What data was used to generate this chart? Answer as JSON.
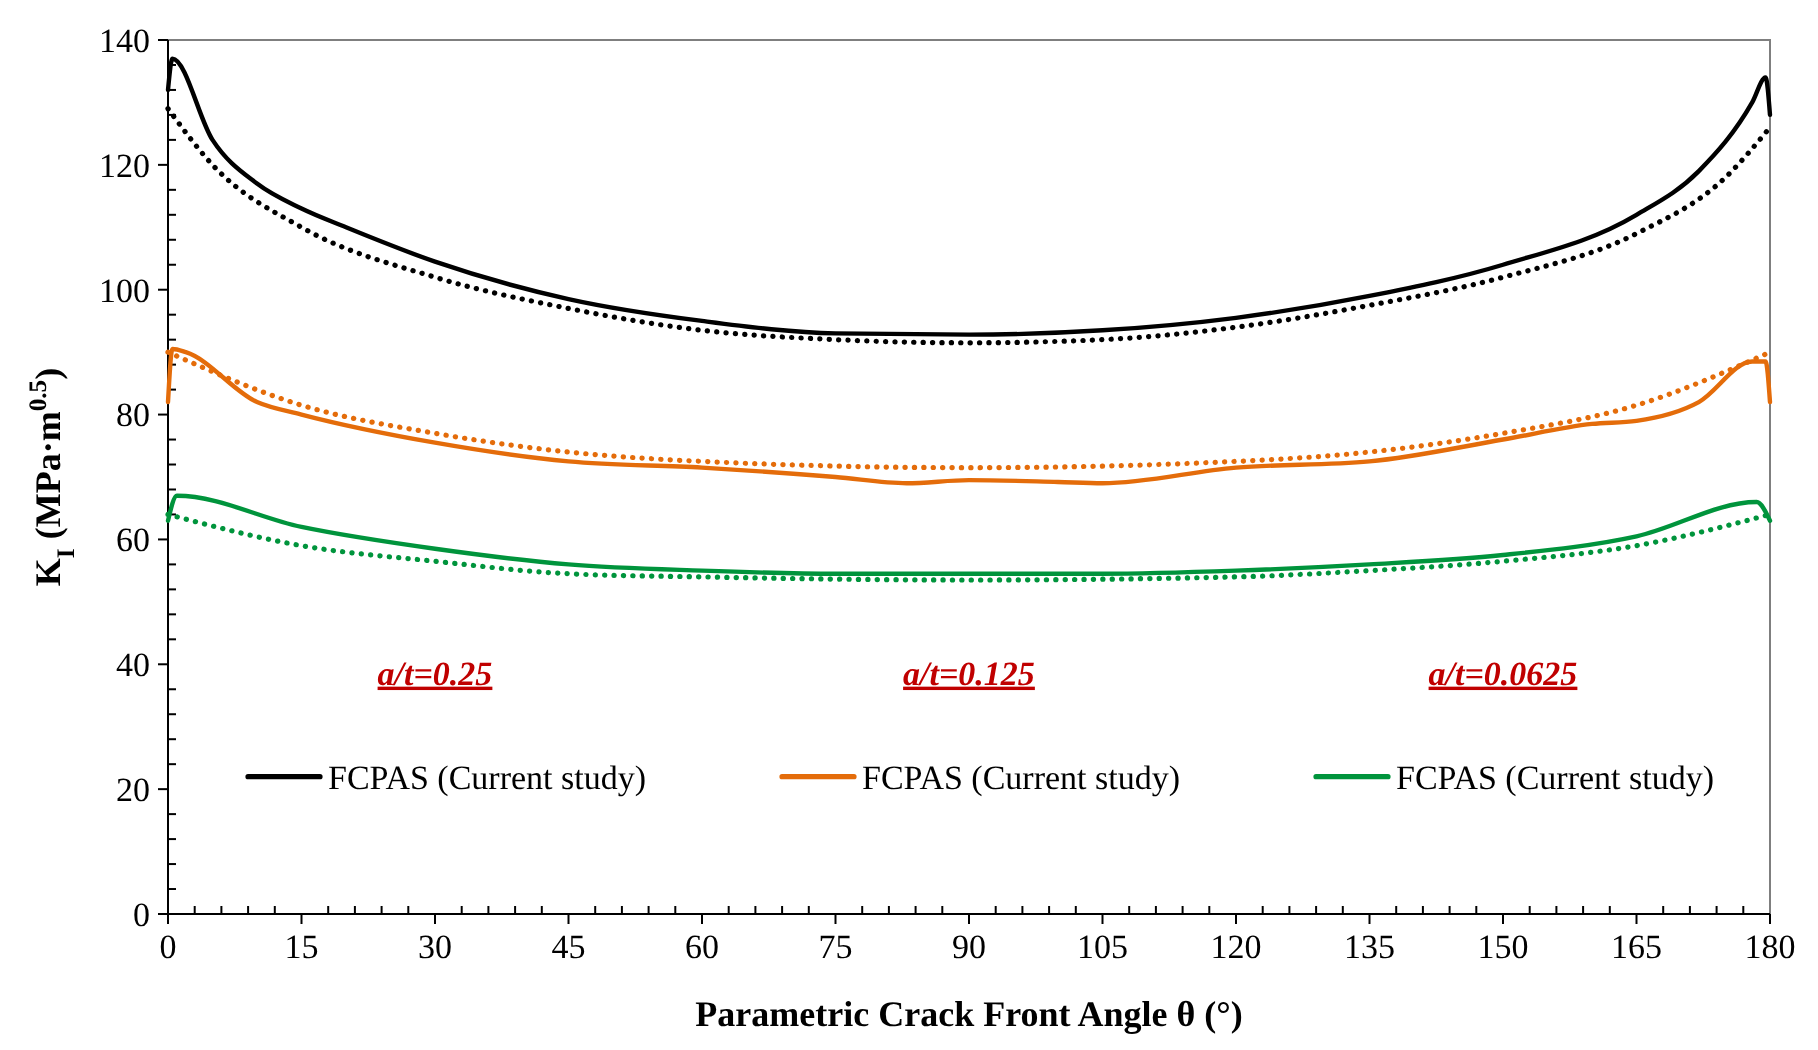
{
  "chart_data": {
    "type": "line",
    "xlabel": "Parametric Crack Front Angle θ (°)",
    "ylabel": "K$_{I}$ (MPa·m$^{0.5}$)",
    "xlim": [
      0,
      180
    ],
    "ylim": [
      0,
      140
    ],
    "xticks": [
      0,
      {
        "value": 3,
        "label": null
      },
      {
        "value": 6,
        "label": null
      },
      {
        "value": 9,
        "label": null
      },
      {
        "value": 12,
        "label": null
      },
      15,
      {
        "value": 18,
        "label": null
      },
      {
        "value": 21,
        "label": null
      },
      {
        "value": 24,
        "label": null
      },
      {
        "value": 27,
        "label": null
      },
      30,
      {
        "value": 33,
        "label": null
      },
      {
        "value": 36,
        "label": null
      },
      {
        "value": 39,
        "label": null
      },
      {
        "value": 42,
        "label": null
      },
      45,
      {
        "value": 48,
        "label": null
      },
      {
        "value": 51,
        "label": null
      },
      {
        "value": 54,
        "label": null
      },
      {
        "value": 57,
        "label": null
      },
      60,
      {
        "value": 63,
        "label": null
      },
      {
        "value": 66,
        "label": null
      },
      {
        "value": 69,
        "label": null
      },
      {
        "value": 72,
        "label": null
      },
      75,
      {
        "value": 78,
        "label": null
      },
      {
        "value": 81,
        "label": null
      },
      {
        "value": 84,
        "label": null
      },
      {
        "value": 87,
        "label": null
      },
      90,
      {
        "value": 93,
        "label": null
      },
      {
        "value": 96,
        "label": null
      },
      {
        "value": 99,
        "label": null
      },
      {
        "value": 102,
        "label": null
      },
      105,
      {
        "value": 108,
        "label": null
      },
      {
        "value": 111,
        "label": null
      },
      {
        "value": 114,
        "label": null
      },
      {
        "value": 117,
        "label": null
      },
      120,
      {
        "value": 123,
        "label": null
      },
      {
        "value": 126,
        "label": null
      },
      {
        "value": 129,
        "label": null
      },
      {
        "value": 132,
        "label": null
      },
      135,
      {
        "value": 138,
        "label": null
      },
      {
        "value": 141,
        "label": null
      },
      {
        "value": 144,
        "label": null
      },
      {
        "value": 147,
        "label": null
      },
      150,
      {
        "value": 153,
        "label": null
      },
      {
        "value": 156,
        "label": null
      },
      {
        "value": 159,
        "label": null
      },
      {
        "value": 162,
        "label": null
      },
      165,
      {
        "value": 168,
        "label": null
      },
      {
        "value": 171,
        "label": null
      },
      {
        "value": 174,
        "label": null
      },
      {
        "value": 177,
        "label": null
      },
      180
    ],
    "yticks": [
      0,
      {
        "value": 4,
        "label": null
      },
      {
        "value": 8,
        "label": null
      },
      {
        "value": 12,
        "label": null
      },
      {
        "value": 16,
        "label": null
      },
      20,
      {
        "value": 24,
        "label": null
      },
      {
        "value": 28,
        "label": null
      },
      {
        "value": 32,
        "label": null
      },
      {
        "value": 36,
        "label": null
      },
      40,
      {
        "value": 44,
        "label": null
      },
      {
        "value": 48,
        "label": null
      },
      {
        "value": 52,
        "label": null
      },
      {
        "value": 56,
        "label": null
      },
      60,
      {
        "value": 64,
        "label": null
      },
      {
        "value": 68,
        "label": null
      },
      {
        "value": 72,
        "label": null
      },
      {
        "value": 76,
        "label": null
      },
      80,
      {
        "value": 84,
        "label": null
      },
      {
        "value": 88,
        "label": null
      },
      {
        "value": 92,
        "label": null
      },
      {
        "value": 96,
        "label": null
      },
      100,
      {
        "value": 104,
        "label": null
      },
      {
        "value": 108,
        "label": null
      },
      {
        "value": 112,
        "label": null
      },
      {
        "value": 116,
        "label": null
      },
      120,
      {
        "value": 124,
        "label": null
      },
      {
        "value": 128,
        "label": null
      },
      {
        "value": 132,
        "label": null
      },
      {
        "value": 136,
        "label": null
      },
      140
    ],
    "grid": false,
    "legend": "bottom",
    "annotations": [
      "a/t=0.25",
      "a/t=0.125",
      "a/t=0.0625"
    ],
    "series": [
      {
        "name": "FCPAS (Current study)",
        "color": "#000000",
        "line_style": "solid",
        "x": [
          0,
          0.5,
          5,
          10,
          15,
          20,
          30,
          45,
          60,
          75,
          90,
          105,
          120,
          135,
          150,
          165,
          172,
          178,
          179.5,
          180
        ],
        "values": [
          132,
          137,
          124,
          117,
          113,
          110,
          104.5,
          98.5,
          95,
          93,
          92.8,
          93.5,
          95.5,
          99,
          104,
          112,
          119,
          130,
          134,
          128
        ]
      },
      {
        "color": "#000000",
        "line_style": "dotted",
        "x": [
          0,
          5,
          15,
          30,
          45,
          60,
          75,
          90,
          105,
          120,
          135,
          150,
          165,
          175,
          180
        ],
        "values": [
          129,
          120,
          110,
          102,
          97,
          93.5,
          92,
          91.5,
          92,
          94,
          97.5,
          102,
          109,
          118,
          126
        ]
      },
      {
        "name": "FCPAS (Current study)",
        "color": "#e46c0a",
        "line_style": "solid",
        "x": [
          0,
          0.5,
          2,
          10,
          15,
          30,
          45,
          60,
          75,
          83,
          90,
          100,
          105,
          120,
          135,
          150,
          160,
          165,
          172,
          178,
          179.5,
          180
        ],
        "values": [
          82,
          90.5,
          90,
          82,
          80,
          75.5,
          72.5,
          71.5,
          70,
          69,
          69.5,
          69.2,
          69,
          71.5,
          72.5,
          76,
          78.5,
          79,
          82,
          88.5,
          88.5,
          82
        ]
      },
      {
        "color": "#e46c0a",
        "line_style": "dotted",
        "x": [
          0,
          15,
          30,
          45,
          60,
          90,
          120,
          135,
          150,
          165,
          180
        ],
        "values": [
          90,
          81.5,
          77,
          74,
          72.5,
          71.5,
          72.5,
          74,
          77,
          81.5,
          90
        ]
      },
      {
        "name": "FCPAS (Current study)",
        "color": "#00943c",
        "line_style": "solid",
        "x": [
          0,
          1,
          15,
          30,
          45,
          60,
          75,
          90,
          105,
          120,
          135,
          150,
          165,
          178.5,
          180
        ],
        "values": [
          63,
          67,
          62,
          58.5,
          56,
          55,
          54.5,
          54.5,
          54.5,
          55,
          56,
          57.5,
          60.5,
          66,
          63
        ]
      },
      {
        "color": "#00943c",
        "line_style": "dotted",
        "x": [
          0,
          15,
          30,
          45,
          60,
          90,
          120,
          135,
          150,
          165,
          180
        ],
        "values": [
          64,
          59,
          56.5,
          54.5,
          54,
          53.5,
          54,
          55,
          56.5,
          59,
          64
        ]
      }
    ]
  }
}
